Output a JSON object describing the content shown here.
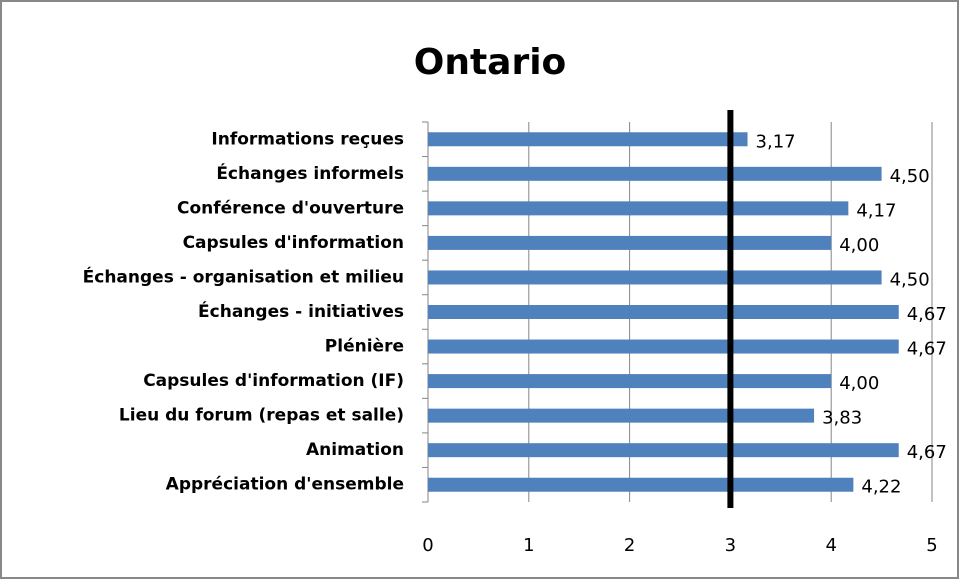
{
  "chart_data": {
    "type": "barh",
    "title": "Ontario",
    "categories": [
      "Informations reçues",
      "Échanges informels",
      "Conférence d'ouverture",
      "Capsules d'information",
      "Échanges - organisation et milieu",
      "Échanges - initiatives",
      "Plénière",
      "Capsules d'information (IF)",
      "Lieu du forum (repas et salle)",
      "Animation",
      "Appréciation d'ensemble"
    ],
    "values": [
      3.17,
      4.5,
      4.17,
      4.0,
      4.5,
      4.67,
      4.67,
      4.0,
      3.83,
      4.67,
      4.22
    ],
    "value_labels": [
      "3,17",
      "4,50",
      "4,17",
      "4,00",
      "4,50",
      "4,67",
      "4,67",
      "4,00",
      "3,83",
      "4,67",
      "4,22"
    ],
    "color": "#4f81bd",
    "xlim": [
      0,
      5
    ],
    "xticks": [
      0,
      1,
      2,
      3,
      4,
      5
    ],
    "grid": true,
    "reference_line": 3,
    "reference_color": "#000000"
  }
}
